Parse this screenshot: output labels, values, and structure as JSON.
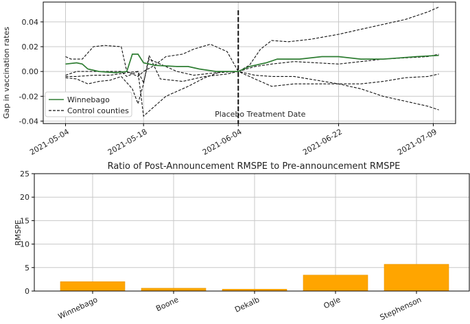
{
  "chart_data": [
    {
      "type": "line",
      "ylabel": "Gap in vaccination rates",
      "ylim": [
        -0.042,
        0.056
      ],
      "yticks": [
        -0.04,
        -0.02,
        0.0,
        0.02,
        0.04
      ],
      "ytick_labels": [
        "-0.04",
        "-0.02",
        "0.00",
        "0.02",
        "0.04"
      ],
      "xlim": [
        "2021-04-30",
        "2021-07-13"
      ],
      "xticks": [
        "2021-05-04",
        "2021-05-18",
        "2021-06-04",
        "2021-06-22",
        "2021-07-09"
      ],
      "grid": true,
      "legend": {
        "position": "lower-left",
        "entries": [
          "Winnebago",
          "Control counties"
        ]
      },
      "annotation": {
        "text": "Placebo Treatment Date",
        "x": "2021-06-04"
      },
      "series": [
        {
          "name": "Winnebago",
          "color": "#2e7d32",
          "style": "solid",
          "points": [
            [
              "2021-05-04",
              0.006
            ],
            [
              "2021-05-06",
              0.007
            ],
            [
              "2021-05-07",
              0.006
            ],
            [
              "2021-05-08",
              0.002
            ],
            [
              "2021-05-10",
              0.0
            ],
            [
              "2021-05-13",
              -0.001
            ],
            [
              "2021-05-15",
              0.0
            ],
            [
              "2021-05-16",
              0.014
            ],
            [
              "2021-05-17",
              0.014
            ],
            [
              "2021-05-18",
              0.007
            ],
            [
              "2021-05-20",
              0.005
            ],
            [
              "2021-05-24",
              0.004
            ],
            [
              "2021-05-26",
              0.004
            ],
            [
              "2021-05-28",
              0.002
            ],
            [
              "2021-05-31",
              0.0
            ],
            [
              "2021-06-02",
              0.0
            ],
            [
              "2021-06-04",
              0.0
            ],
            [
              "2021-06-06",
              0.004
            ],
            [
              "2021-06-09",
              0.007
            ],
            [
              "2021-06-11",
              0.01
            ],
            [
              "2021-06-15",
              0.01
            ],
            [
              "2021-06-19",
              0.012
            ],
            [
              "2021-06-22",
              0.012
            ],
            [
              "2021-06-26",
              0.01
            ],
            [
              "2021-06-30",
              0.01
            ],
            [
              "2021-07-03",
              0.011
            ],
            [
              "2021-07-06",
              0.012
            ],
            [
              "2021-07-10",
              0.013
            ]
          ]
        },
        {
          "name": "Control counties",
          "color": "#111111",
          "style": "dashed",
          "points": [
            [
              "2021-05-04",
              0.012
            ],
            [
              "2021-05-05",
              0.01
            ],
            [
              "2021-05-07",
              0.01
            ],
            [
              "2021-05-09",
              0.02
            ],
            [
              "2021-05-11",
              0.021
            ],
            [
              "2021-05-14",
              0.02
            ],
            [
              "2021-05-15",
              0.0
            ],
            [
              "2021-05-17",
              -0.004
            ],
            [
              "2021-05-18",
              0.0
            ],
            [
              "2021-05-20",
              0.005
            ],
            [
              "2021-05-22",
              0.012
            ],
            [
              "2021-05-25",
              0.014
            ],
            [
              "2021-05-27",
              0.018
            ],
            [
              "2021-05-30",
              0.022
            ],
            [
              "2021-06-02",
              0.016
            ],
            [
              "2021-06-04",
              0.0
            ],
            [
              "2021-06-06",
              0.005
            ],
            [
              "2021-06-08",
              0.018
            ],
            [
              "2021-06-10",
              0.025
            ],
            [
              "2021-06-13",
              0.024
            ],
            [
              "2021-06-17",
              0.026
            ],
            [
              "2021-06-22",
              0.03
            ],
            [
              "2021-06-26",
              0.034
            ],
            [
              "2021-06-30",
              0.038
            ],
            [
              "2021-07-04",
              0.042
            ],
            [
              "2021-07-08",
              0.048
            ],
            [
              "2021-07-10",
              0.052
            ]
          ]
        },
        {
          "name": "",
          "color": "#111111",
          "style": "dashed",
          "points": [
            [
              "2021-05-04",
              -0.003
            ],
            [
              "2021-05-06",
              0.0
            ],
            [
              "2021-05-08",
              0.0
            ],
            [
              "2021-05-11",
              0.0
            ],
            [
              "2021-05-14",
              0.0
            ],
            [
              "2021-05-15",
              -0.004
            ],
            [
              "2021-05-17",
              0.0
            ],
            [
              "2021-05-18",
              -0.036
            ],
            [
              "2021-05-19",
              -0.032
            ],
            [
              "2021-05-22",
              -0.02
            ],
            [
              "2021-05-26",
              -0.012
            ],
            [
              "2021-05-29",
              -0.005
            ],
            [
              "2021-06-01",
              0.0
            ],
            [
              "2021-06-04",
              0.0
            ],
            [
              "2021-06-07",
              -0.003
            ],
            [
              "2021-06-10",
              -0.004
            ],
            [
              "2021-06-14",
              -0.004
            ],
            [
              "2021-06-18",
              -0.007
            ],
            [
              "2021-06-22",
              -0.01
            ],
            [
              "2021-06-26",
              -0.014
            ],
            [
              "2021-06-30",
              -0.02
            ],
            [
              "2021-07-04",
              -0.024
            ],
            [
              "2021-07-08",
              -0.028
            ],
            [
              "2021-07-10",
              -0.031
            ]
          ]
        },
        {
          "name": "",
          "color": "#111111",
          "style": "dashed",
          "points": [
            [
              "2021-05-04",
              -0.005
            ],
            [
              "2021-05-06",
              -0.006
            ],
            [
              "2021-05-08",
              -0.01
            ],
            [
              "2021-05-10",
              -0.008
            ],
            [
              "2021-05-12",
              -0.007
            ],
            [
              "2021-05-14",
              -0.004
            ],
            [
              "2021-05-16",
              -0.014
            ],
            [
              "2021-05-17",
              -0.026
            ],
            [
              "2021-05-18",
              -0.01
            ],
            [
              "2021-05-19",
              0.013
            ],
            [
              "2021-05-21",
              -0.006
            ],
            [
              "2021-05-25",
              -0.008
            ],
            [
              "2021-05-29",
              -0.004
            ],
            [
              "2021-06-02",
              -0.002
            ],
            [
              "2021-06-04",
              0.0
            ],
            [
              "2021-06-07",
              -0.006
            ],
            [
              "2021-06-10",
              -0.012
            ],
            [
              "2021-06-14",
              -0.01
            ],
            [
              "2021-06-18",
              -0.01
            ],
            [
              "2021-06-22",
              -0.01
            ],
            [
              "2021-06-26",
              -0.01
            ],
            [
              "2021-06-30",
              -0.008
            ],
            [
              "2021-07-04",
              -0.005
            ],
            [
              "2021-07-08",
              -0.004
            ],
            [
              "2021-07-10",
              -0.002
            ]
          ]
        },
        {
          "name": "",
          "color": "#111111",
          "style": "dashed",
          "points": [
            [
              "2021-05-04",
              -0.004
            ],
            [
              "2021-05-06",
              -0.004
            ],
            [
              "2021-05-09",
              -0.003
            ],
            [
              "2021-05-12",
              -0.003
            ],
            [
              "2021-05-15",
              -0.001
            ],
            [
              "2021-05-17",
              0.0
            ],
            [
              "2021-05-18",
              -0.009
            ],
            [
              "2021-05-19",
              0.01
            ],
            [
              "2021-05-21",
              0.006
            ],
            [
              "2021-05-24",
              0.0
            ],
            [
              "2021-05-27",
              -0.003
            ],
            [
              "2021-05-31",
              -0.001
            ],
            [
              "2021-06-04",
              0.0
            ],
            [
              "2021-06-07",
              0.004
            ],
            [
              "2021-06-10",
              0.006
            ],
            [
              "2021-06-14",
              0.008
            ],
            [
              "2021-06-18",
              0.007
            ],
            [
              "2021-06-22",
              0.006
            ],
            [
              "2021-06-26",
              0.008
            ],
            [
              "2021-06-30",
              0.01
            ],
            [
              "2021-07-04",
              0.011
            ],
            [
              "2021-07-08",
              0.012
            ],
            [
              "2021-07-10",
              0.014
            ]
          ]
        }
      ]
    },
    {
      "type": "bar",
      "title": "Ratio of Post-Announcement RMSPE to Pre-announcement RMSPE",
      "ylabel": "RMSPE",
      "ylim": [
        0,
        25
      ],
      "yticks": [
        0,
        5,
        10,
        15,
        20,
        25
      ],
      "categories": [
        "Winnebago",
        "Boone",
        "Dekalb",
        "Ogle",
        "Stephenson"
      ],
      "values": [
        2.0,
        0.6,
        0.4,
        3.4,
        5.7
      ],
      "color": "#ffa500",
      "grid": true
    }
  ]
}
